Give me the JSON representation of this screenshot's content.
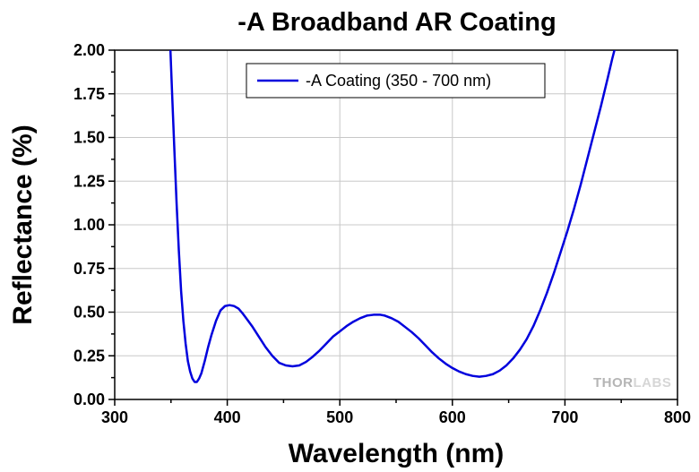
{
  "chart_data": {
    "type": "line",
    "title": "-A Broadband AR Coating",
    "xlabel": "Wavelength (nm)",
    "ylabel": "Reflectance (%)",
    "xlim": [
      300,
      800
    ],
    "ylim": [
      0,
      2.0
    ],
    "x_ticks": [
      "300",
      "400",
      "500",
      "600",
      "700",
      "800"
    ],
    "y_ticks": [
      "0.00",
      "0.25",
      "0.50",
      "0.75",
      "1.00",
      "1.25",
      "1.50",
      "1.75",
      "2.00"
    ],
    "grid": true,
    "legend_position": "top-center",
    "series": [
      {
        "name": "-A Coating (350 - 700 nm)",
        "color": "#0000dd",
        "x": [
          349.5,
          351,
          353,
          355,
          357,
          359,
          361,
          363,
          365,
          367,
          369,
          371,
          373,
          375,
          377,
          380,
          383,
          386,
          390,
          394,
          398,
          402,
          406,
          410,
          414,
          418,
          422,
          428,
          434,
          440,
          446,
          452,
          458,
          464,
          470,
          476,
          482,
          488,
          494,
          500,
          506,
          512,
          518,
          524,
          530,
          536,
          540,
          546,
          552,
          558,
          564,
          570,
          576,
          582,
          588,
          594,
          600,
          606,
          612,
          618,
          624,
          630,
          636,
          642,
          648,
          654,
          660,
          666,
          672,
          678,
          684,
          690,
          696,
          702,
          708,
          714,
          720,
          726,
          732,
          738,
          742,
          744
        ],
        "y": [
          2.0,
          1.75,
          1.43,
          1.12,
          0.85,
          0.62,
          0.45,
          0.32,
          0.22,
          0.16,
          0.12,
          0.1,
          0.1,
          0.12,
          0.15,
          0.22,
          0.3,
          0.37,
          0.45,
          0.51,
          0.535,
          0.54,
          0.535,
          0.52,
          0.49,
          0.455,
          0.42,
          0.36,
          0.3,
          0.25,
          0.21,
          0.195,
          0.19,
          0.195,
          0.215,
          0.245,
          0.28,
          0.32,
          0.36,
          0.39,
          0.42,
          0.445,
          0.465,
          0.48,
          0.485,
          0.485,
          0.48,
          0.465,
          0.445,
          0.415,
          0.385,
          0.35,
          0.31,
          0.27,
          0.235,
          0.205,
          0.18,
          0.16,
          0.145,
          0.135,
          0.13,
          0.135,
          0.145,
          0.165,
          0.195,
          0.235,
          0.285,
          0.345,
          0.42,
          0.51,
          0.61,
          0.72,
          0.84,
          0.96,
          1.09,
          1.23,
          1.38,
          1.53,
          1.68,
          1.84,
          1.95,
          2.0
        ]
      }
    ]
  },
  "watermark": {
    "text_dark": "THOR",
    "text_light": "LABS",
    "color_dark": "#b5b5b5",
    "color_light": "#d6d6d6"
  }
}
